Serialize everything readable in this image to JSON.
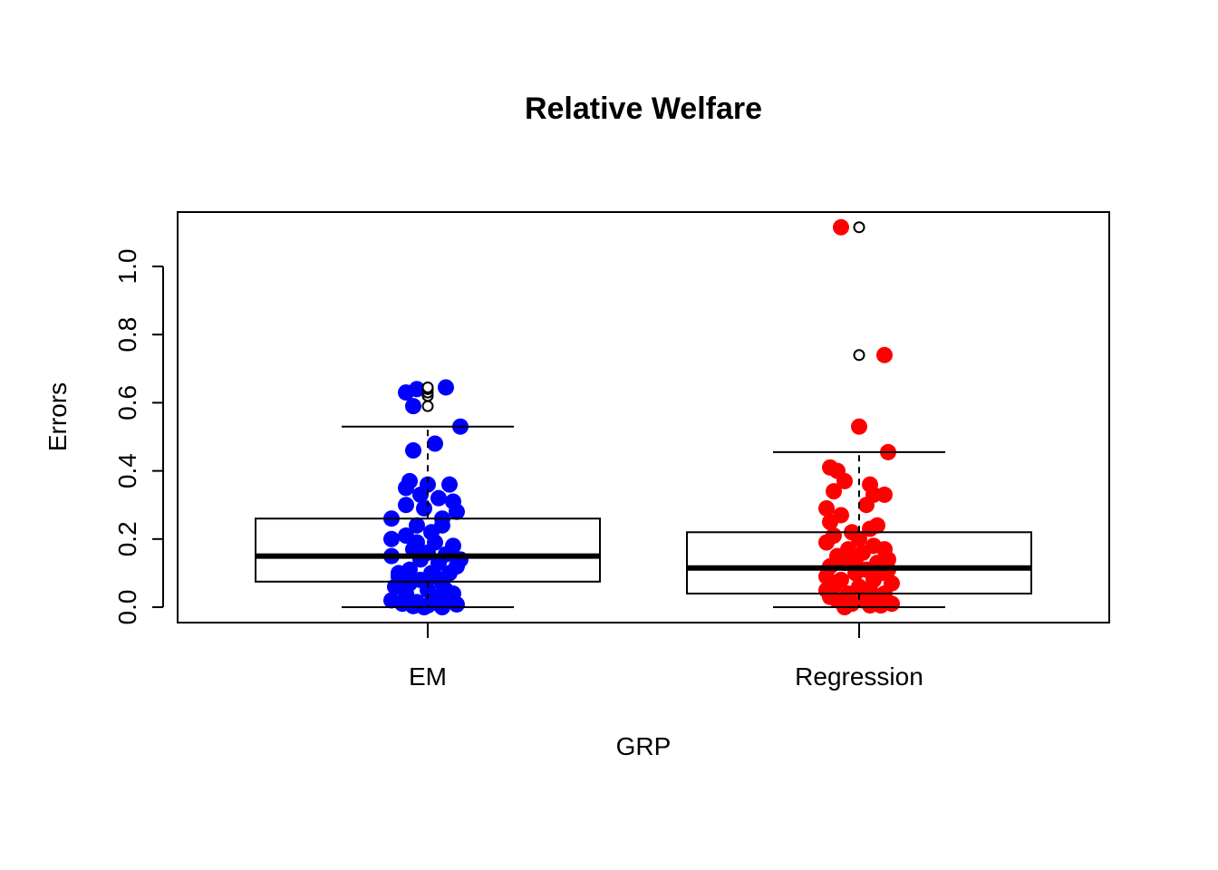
{
  "chart_data": {
    "type": "box",
    "title": "Relative Welfare",
    "xlabel": "GRP",
    "ylabel": "Errors",
    "ylim": [
      -0.045,
      1.155
    ],
    "yticks": [
      0.0,
      0.2,
      0.4,
      0.6,
      0.8,
      1.0
    ],
    "ytick_labels": [
      "0.0",
      "0.2",
      "0.4",
      "0.6",
      "0.8",
      "1.0"
    ],
    "grid": false,
    "categories": [
      "EM",
      "Regression"
    ],
    "boxes": [
      {
        "name": "EM",
        "whisker_low": 0.0,
        "q1": 0.075,
        "median": 0.15,
        "q3": 0.26,
        "whisker_high": 0.53,
        "outliers": [
          0.59,
          0.62,
          0.63,
          0.64,
          0.645
        ]
      },
      {
        "name": "Regression",
        "whisker_low": 0.0,
        "q1": 0.04,
        "median": 0.115,
        "q3": 0.22,
        "whisker_high": 0.455,
        "outliers": [
          0.74,
          1.115
        ]
      }
    ],
    "jitter_points": [
      {
        "group": "EM",
        "color": "#0000ff",
        "points": [
          [
            -0.06,
            0.63
          ],
          [
            -0.03,
            0.64
          ],
          [
            0.05,
            0.645
          ],
          [
            -0.04,
            0.59
          ],
          [
            0.09,
            0.53
          ],
          [
            0.02,
            0.48
          ],
          [
            -0.04,
            0.46
          ],
          [
            -0.05,
            0.37
          ],
          [
            0.0,
            0.36
          ],
          [
            0.06,
            0.36
          ],
          [
            -0.06,
            0.35
          ],
          [
            -0.02,
            0.33
          ],
          [
            0.03,
            0.32
          ],
          [
            0.07,
            0.31
          ],
          [
            -0.06,
            0.3
          ],
          [
            0.08,
            0.28
          ],
          [
            -0.01,
            0.29
          ],
          [
            0.04,
            0.26
          ],
          [
            -0.1,
            0.26
          ],
          [
            -0.03,
            0.24
          ],
          [
            0.01,
            0.22
          ],
          [
            0.04,
            0.24
          ],
          [
            -0.06,
            0.21
          ],
          [
            -0.1,
            0.2
          ],
          [
            0.02,
            0.19
          ],
          [
            0.07,
            0.18
          ],
          [
            -0.04,
            0.17
          ],
          [
            0.0,
            0.16
          ],
          [
            0.05,
            0.155
          ],
          [
            -0.1,
            0.15
          ],
          [
            -0.02,
            0.14
          ],
          [
            0.03,
            0.13
          ],
          [
            0.08,
            0.12
          ],
          [
            -0.05,
            0.11
          ],
          [
            0.01,
            0.1
          ],
          [
            0.06,
            0.1
          ],
          [
            -0.08,
            0.09
          ],
          [
            -0.02,
            0.08
          ],
          [
            0.04,
            0.07
          ],
          [
            -0.09,
            0.06
          ],
          [
            0.0,
            0.05
          ],
          [
            0.05,
            0.05
          ],
          [
            -0.06,
            0.04
          ],
          [
            0.02,
            0.03
          ],
          [
            -0.1,
            0.02
          ],
          [
            0.06,
            0.02
          ],
          [
            -0.03,
            0.015
          ],
          [
            0.03,
            0.01
          ],
          [
            -0.07,
            0.01
          ],
          [
            0.0,
            0.005
          ],
          [
            0.08,
            0.008
          ],
          [
            -0.04,
            0.003
          ],
          [
            0.04,
            0.0
          ],
          [
            -0.01,
            0.0
          ],
          [
            0.07,
            0.04
          ],
          [
            -0.08,
            0.1
          ],
          [
            0.09,
            0.14
          ],
          [
            -0.05,
            0.07
          ],
          [
            0.02,
            0.09
          ],
          [
            -0.03,
            0.19
          ]
        ]
      },
      {
        "group": "Regression",
        "color": "#ff0000",
        "points": [
          [
            -0.05,
            1.115
          ],
          [
            0.07,
            0.74
          ],
          [
            0.0,
            0.53
          ],
          [
            0.08,
            0.455
          ],
          [
            -0.08,
            0.41
          ],
          [
            -0.06,
            0.4
          ],
          [
            -0.04,
            0.37
          ],
          [
            0.03,
            0.36
          ],
          [
            -0.07,
            0.34
          ],
          [
            0.04,
            0.33
          ],
          [
            0.07,
            0.33
          ],
          [
            0.02,
            0.3
          ],
          [
            -0.09,
            0.29
          ],
          [
            -0.05,
            0.27
          ],
          [
            -0.08,
            0.25
          ],
          [
            0.05,
            0.24
          ],
          [
            0.03,
            0.23
          ],
          [
            -0.02,
            0.22
          ],
          [
            -0.07,
            0.21
          ],
          [
            0.0,
            0.2
          ],
          [
            -0.09,
            0.19
          ],
          [
            0.04,
            0.18
          ],
          [
            0.07,
            0.17
          ],
          [
            -0.03,
            0.17
          ],
          [
            0.01,
            0.16
          ],
          [
            -0.06,
            0.15
          ],
          [
            0.08,
            0.14
          ],
          [
            0.05,
            0.13
          ],
          [
            -0.04,
            0.13
          ],
          [
            -0.08,
            0.12
          ],
          [
            0.02,
            0.11
          ],
          [
            0.06,
            0.1
          ],
          [
            -0.01,
            0.1
          ],
          [
            -0.09,
            0.09
          ],
          [
            0.04,
            0.08
          ],
          [
            -0.05,
            0.08
          ],
          [
            0.09,
            0.07
          ],
          [
            0.0,
            0.06
          ],
          [
            -0.07,
            0.06
          ],
          [
            0.03,
            0.05
          ],
          [
            0.07,
            0.04
          ],
          [
            -0.03,
            0.04
          ],
          [
            -0.08,
            0.03
          ],
          [
            0.05,
            0.03
          ],
          [
            0.01,
            0.02
          ],
          [
            -0.06,
            0.02
          ],
          [
            0.09,
            0.01
          ],
          [
            -0.02,
            0.01
          ],
          [
            0.03,
            0.005
          ],
          [
            -0.04,
            0.0
          ],
          [
            0.06,
            0.005
          ],
          [
            -0.09,
            0.05
          ],
          [
            0.08,
            0.11
          ],
          [
            -0.01,
            0.14
          ]
        ]
      }
    ]
  }
}
